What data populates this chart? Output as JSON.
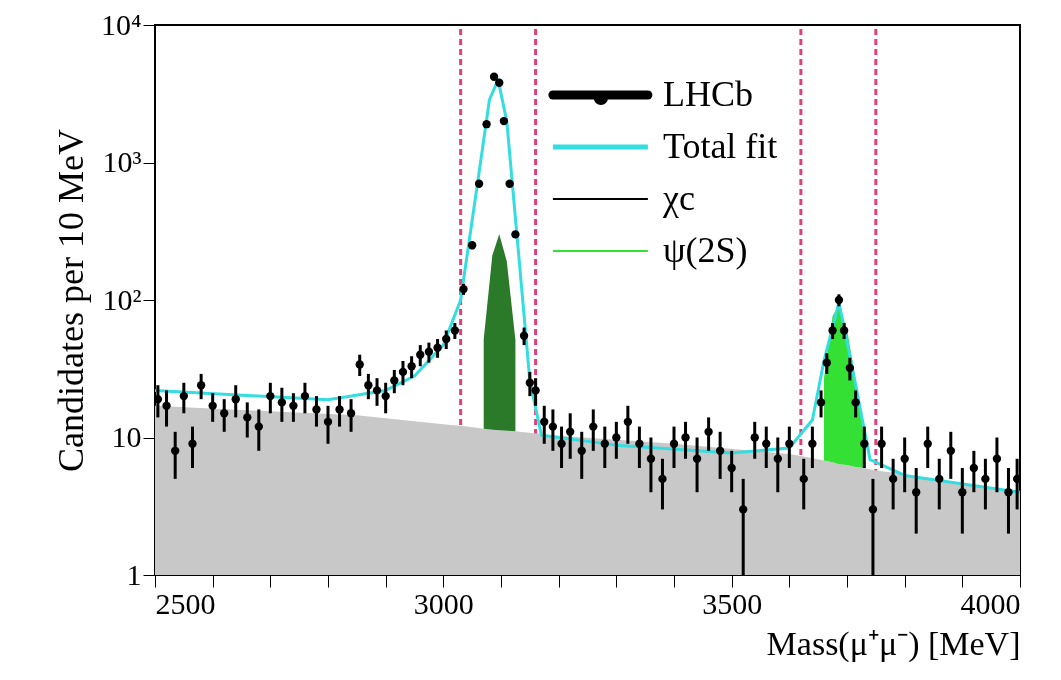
{
  "chart_data": {
    "type": "line",
    "xlabel": "Mass(μ⁺μ⁻) [MeV]",
    "ylabel": "Candidates per 10 MeV",
    "xlim": [
      2500,
      4000
    ],
    "ylim": [
      1,
      10000
    ],
    "log": "y",
    "grid": false,
    "legend": "top right",
    "xticks": [
      2500,
      {
        "value": 2600,
        "label": null
      },
      {
        "value": 2700,
        "label": null
      },
      {
        "value": 2800,
        "label": null
      },
      {
        "value": 2900,
        "label": null
      },
      3000,
      {
        "value": 3100,
        "label": null
      },
      {
        "value": 3200,
        "label": null
      },
      {
        "value": 3300,
        "label": null
      },
      {
        "value": 3400,
        "label": null
      },
      3500,
      {
        "value": 3600,
        "label": null
      },
      {
        "value": 3700,
        "label": null
      },
      {
        "value": 3800,
        "label": null
      },
      {
        "value": 3900,
        "label": null
      },
      4000
    ],
    "yticks": [
      1,
      10,
      {
        "value": 100,
        "label": "10²"
      },
      {
        "value": 1000,
        "label": "10³"
      },
      {
        "value": 10000,
        "label": "10⁴"
      }
    ],
    "x": [
      2500,
      2700,
      2850,
      3000,
      3040,
      3055,
      3070,
      3085,
      3097,
      3110,
      3125,
      3140,
      3200,
      3400,
      3600,
      3630,
      3645,
      3660,
      3675,
      3686,
      3700,
      3715,
      3730,
      3745,
      3800,
      4000
    ],
    "stacked": true,
    "series": [
      {
        "type": "area",
        "color": "#c8c8c8",
        "values": [
          17,
          15.5,
          14.5,
          12.5,
          12,
          11.8,
          11.6,
          11.4,
          11.3,
          11.2,
          11.1,
          10.9,
          10.3,
          9,
          7.6,
          7.2,
          7,
          6.8,
          6.6,
          6.4,
          6.3,
          6.1,
          6,
          5.8,
          5.4,
          4
        ]
      },
      {
        "type": "area",
        "color": "#2a7a2a",
        "values": [
          null,
          null,
          null,
          null,
          null,
          null,
          40,
          200,
          290,
          180,
          40,
          null,
          null,
          null,
          null,
          null,
          null,
          null,
          null,
          null,
          null,
          null,
          null,
          null,
          null,
          null
        ]
      },
      {
        "type": "area",
        "name": "ψ(2S)",
        "color": "#33e033",
        "values": [
          null,
          null,
          null,
          null,
          null,
          null,
          null,
          null,
          null,
          null,
          null,
          null,
          null,
          null,
          null,
          null,
          null,
          20,
          70,
          85,
          55,
          20,
          5,
          null,
          null,
          null
        ]
      },
      {
        "type": "line",
        "name": "χc",
        "color": "#000000",
        "values": [
          null,
          null,
          null,
          null,
          null,
          null,
          null,
          null,
          null,
          null,
          null,
          null,
          null,
          null,
          null,
          null,
          null,
          null,
          null,
          null,
          null,
          null,
          null,
          null,
          null,
          null
        ]
      },
      {
        "name": "Total fit",
        "color": "#33dde0",
        "x": [
          2500,
          2800,
          2900,
          2950,
          3000,
          3030,
          3060,
          3080,
          3095,
          3110,
          3130,
          3150,
          3170,
          3300,
          3500,
          3600,
          3640,
          3660,
          3686,
          3710,
          3740,
          3800,
          4000
        ],
        "values": [
          22,
          18.8,
          22,
          28,
          47,
          100,
          740,
          2860,
          4000,
          2000,
          230,
          26,
          10.4,
          8.8,
          7.7,
          8.4,
          13.4,
          36,
          96,
          31,
          6.9,
          5.3,
          4
        ]
      },
      {
        "type": "scatter",
        "name": "LHCb",
        "color": "#000000",
        "x": [
          2505,
          2520,
          2535,
          2550,
          2565,
          2580,
          2600,
          2620,
          2640,
          2660,
          2680,
          2700,
          2720,
          2740,
          2760,
          2780,
          2800,
          2820,
          2840,
          2855,
          2870,
          2885,
          2900,
          2915,
          2930,
          2945,
          2960,
          2975,
          2990,
          3005,
          3020,
          3035,
          3050,
          3062,
          3075,
          3088,
          3097,
          3105,
          3115,
          3125,
          3140,
          3150,
          3160,
          3175,
          3190,
          3205,
          3220,
          3240,
          3260,
          3280,
          3300,
          3320,
          3340,
          3360,
          3380,
          3400,
          3420,
          3440,
          3460,
          3480,
          3500,
          3520,
          3540,
          3560,
          3580,
          3600,
          3625,
          3640,
          3655,
          3665,
          3675,
          3686,
          3695,
          3705,
          3715,
          3730,
          3745,
          3760,
          3780,
          3800,
          3820,
          3840,
          3860,
          3880,
          3900,
          3920,
          3940,
          3960,
          3980,
          3995
        ],
        "values": [
          19,
          17,
          8,
          20,
          9,
          24,
          17,
          15,
          19,
          14,
          12,
          20,
          18,
          17,
          20,
          16,
          13,
          16,
          15,
          34,
          24,
          22,
          20,
          26,
          30,
          33,
          40,
          42,
          45,
          52,
          60,
          120,
          250,
          700,
          1900,
          4200,
          3800,
          2000,
          700,
          300,
          55,
          25,
          22,
          13,
          12,
          9,
          11,
          8,
          12,
          9,
          10,
          13,
          9,
          7,
          5,
          9,
          10,
          7,
          11,
          8,
          6,
          3,
          10,
          9,
          7,
          9,
          5,
          9,
          18,
          35,
          60,
          100,
          60,
          32,
          18,
          9,
          3,
          9,
          5,
          7,
          4,
          9,
          5,
          8,
          4,
          6,
          5,
          7,
          4,
          5
        ],
        "errors": [
          5,
          5,
          3,
          5,
          3,
          5,
          4,
          4,
          5,
          4,
          4,
          5,
          5,
          4,
          5,
          4,
          4,
          4,
          4,
          6,
          5,
          5,
          5,
          5,
          6,
          6,
          7,
          7,
          7,
          8,
          8,
          11,
          16,
          26,
          44,
          65,
          62,
          45,
          26,
          17,
          8,
          5,
          5,
          4,
          4,
          3,
          4,
          3,
          4,
          3,
          3,
          4,
          3,
          3,
          2,
          3,
          3,
          3,
          3,
          3,
          2,
          2,
          3,
          3,
          3,
          3,
          2,
          3,
          4,
          6,
          8,
          10,
          8,
          6,
          4,
          3,
          2,
          3,
          2,
          3,
          2,
          3,
          2,
          3,
          2,
          2,
          2,
          3,
          2,
          2
        ]
      }
    ],
    "ref_lines": [
      {
        "axis": "x",
        "value": 3030,
        "color": "#e0407a",
        "line_style": "dashed"
      },
      {
        "axis": "x",
        "value": 3160,
        "color": "#e0407a",
        "line_style": "dashed"
      },
      {
        "axis": "x",
        "value": 3620,
        "color": "#e0407a",
        "line_style": "dashed"
      },
      {
        "axis": "x",
        "value": 3750,
        "color": "#e0407a",
        "line_style": "dashed"
      }
    ]
  }
}
